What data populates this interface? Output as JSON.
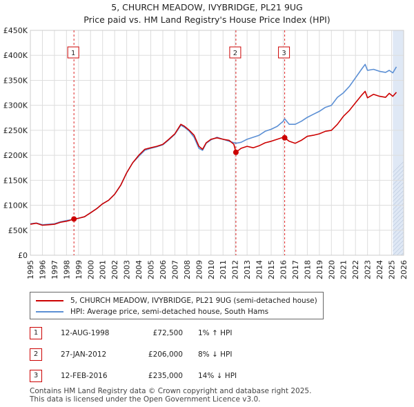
{
  "title_line1": "5, CHURCH MEADOW, IVYBRIDGE, PL21 9UG",
  "title_line2": "Price paid vs. HM Land Registry's House Price Index (HPI)",
  "colors": {
    "property": "#cc0000",
    "hpi": "#5b8fd4",
    "shade": "#dfe8f5",
    "grid": "#dddddd",
    "vline": "#dd2222"
  },
  "chart_data": {
    "type": "line",
    "xlim": [
      1995,
      2026
    ],
    "ylim": [
      0,
      450000
    ],
    "x_ticks": [
      1995,
      1996,
      1997,
      1998,
      1999,
      2000,
      2001,
      2002,
      2003,
      2004,
      2005,
      2006,
      2007,
      2008,
      2009,
      2010,
      2011,
      2012,
      2013,
      2014,
      2015,
      2016,
      2017,
      2018,
      2019,
      2020,
      2021,
      2022,
      2023,
      2024,
      2025,
      2026
    ],
    "y_ticks": [
      {
        "value": 0,
        "label": "£0"
      },
      {
        "value": 50000,
        "label": "£50K"
      },
      {
        "value": 100000,
        "label": "£100K"
      },
      {
        "value": 150000,
        "label": "£150K"
      },
      {
        "value": 200000,
        "label": "£200K"
      },
      {
        "value": 250000,
        "label": "£250K"
      },
      {
        "value": 300000,
        "label": "£300K"
      },
      {
        "value": 350000,
        "label": "£350K"
      },
      {
        "value": 400000,
        "label": "£400K"
      },
      {
        "value": 450000,
        "label": "£450K"
      }
    ],
    "forecast_start": 2025.1,
    "series": [
      {
        "name": "5, CHURCH MEADOW, IVYBRIDGE, PL21 9UG (semi-detached house)",
        "points": [
          [
            1995.0,
            62000
          ],
          [
            1995.5,
            64000
          ],
          [
            1996.0,
            60000
          ],
          [
            1996.5,
            61000
          ],
          [
            1997.0,
            62000
          ],
          [
            1997.5,
            66000
          ],
          [
            1998.0,
            68000
          ],
          [
            1998.3,
            70000
          ],
          [
            1998.62,
            72500
          ],
          [
            1999.0,
            74000
          ],
          [
            1999.5,
            77000
          ],
          [
            2000.0,
            85000
          ],
          [
            2000.5,
            93000
          ],
          [
            2001.0,
            103000
          ],
          [
            2001.5,
            110000
          ],
          [
            2002.0,
            122000
          ],
          [
            2002.5,
            140000
          ],
          [
            2003.0,
            165000
          ],
          [
            2003.5,
            185000
          ],
          [
            2004.0,
            200000
          ],
          [
            2004.5,
            212000
          ],
          [
            2005.0,
            215000
          ],
          [
            2005.5,
            218000
          ],
          [
            2006.0,
            222000
          ],
          [
            2006.5,
            232000
          ],
          [
            2007.0,
            243000
          ],
          [
            2007.5,
            262000
          ],
          [
            2007.8,
            258000
          ],
          [
            2008.2,
            250000
          ],
          [
            2008.6,
            240000
          ],
          [
            2009.0,
            218000
          ],
          [
            2009.3,
            212000
          ],
          [
            2009.6,
            225000
          ],
          [
            2010.0,
            232000
          ],
          [
            2010.5,
            235000
          ],
          [
            2011.0,
            232000
          ],
          [
            2011.5,
            230000
          ],
          [
            2011.9,
            222000
          ],
          [
            2012.07,
            206000
          ],
          [
            2012.5,
            214000
          ],
          [
            2013.0,
            218000
          ],
          [
            2013.5,
            215000
          ],
          [
            2014.0,
            219000
          ],
          [
            2014.5,
            225000
          ],
          [
            2015.0,
            228000
          ],
          [
            2015.5,
            232000
          ],
          [
            2016.0,
            236000
          ],
          [
            2016.12,
            235000
          ],
          [
            2016.5,
            228000
          ],
          [
            2017.0,
            224000
          ],
          [
            2017.5,
            230000
          ],
          [
            2018.0,
            238000
          ],
          [
            2018.5,
            240000
          ],
          [
            2019.0,
            243000
          ],
          [
            2019.5,
            248000
          ],
          [
            2020.0,
            250000
          ],
          [
            2020.5,
            262000
          ],
          [
            2021.0,
            278000
          ],
          [
            2021.5,
            290000
          ],
          [
            2022.0,
            305000
          ],
          [
            2022.5,
            320000
          ],
          [
            2022.8,
            328000
          ],
          [
            2023.0,
            315000
          ],
          [
            2023.5,
            322000
          ],
          [
            2024.0,
            318000
          ],
          [
            2024.5,
            316000
          ],
          [
            2024.8,
            324000
          ],
          [
            2025.1,
            318000
          ],
          [
            2025.4,
            326000
          ]
        ]
      },
      {
        "name": "HPI: Average price, semi-detached house, South Hams",
        "points": [
          [
            1995.0,
            63000
          ],
          [
            1995.5,
            64500
          ],
          [
            1996.0,
            61000
          ],
          [
            1996.5,
            62000
          ],
          [
            1997.0,
            63000
          ],
          [
            1997.5,
            67000
          ],
          [
            1998.0,
            69500
          ],
          [
            1998.62,
            71800
          ],
          [
            1999.0,
            74000
          ],
          [
            1999.5,
            77000
          ],
          [
            2000.0,
            85000
          ],
          [
            2000.5,
            93000
          ],
          [
            2001.0,
            103000
          ],
          [
            2001.5,
            110000
          ],
          [
            2002.0,
            122000
          ],
          [
            2002.5,
            140000
          ],
          [
            2003.0,
            165000
          ],
          [
            2003.5,
            185000
          ],
          [
            2004.0,
            198000
          ],
          [
            2004.5,
            210000
          ],
          [
            2005.0,
            214000
          ],
          [
            2005.5,
            217000
          ],
          [
            2006.0,
            221000
          ],
          [
            2006.5,
            231000
          ],
          [
            2007.0,
            242000
          ],
          [
            2007.5,
            260000
          ],
          [
            2007.8,
            256000
          ],
          [
            2008.2,
            248000
          ],
          [
            2008.6,
            236000
          ],
          [
            2009.0,
            214000
          ],
          [
            2009.3,
            210000
          ],
          [
            2009.6,
            224000
          ],
          [
            2010.0,
            231000
          ],
          [
            2010.5,
            236000
          ],
          [
            2011.0,
            232000
          ],
          [
            2011.5,
            228000
          ],
          [
            2012.07,
            224000
          ],
          [
            2012.5,
            226000
          ],
          [
            2013.0,
            232000
          ],
          [
            2013.5,
            236000
          ],
          [
            2014.0,
            240000
          ],
          [
            2014.5,
            248000
          ],
          [
            2015.0,
            252000
          ],
          [
            2015.5,
            258000
          ],
          [
            2016.0,
            268000
          ],
          [
            2016.12,
            273000
          ],
          [
            2016.5,
            262000
          ],
          [
            2017.0,
            262000
          ],
          [
            2017.5,
            268000
          ],
          [
            2018.0,
            276000
          ],
          [
            2018.5,
            282000
          ],
          [
            2019.0,
            288000
          ],
          [
            2019.5,
            296000
          ],
          [
            2020.0,
            300000
          ],
          [
            2020.5,
            316000
          ],
          [
            2021.0,
            325000
          ],
          [
            2021.5,
            338000
          ],
          [
            2022.0,
            355000
          ],
          [
            2022.5,
            372000
          ],
          [
            2022.8,
            382000
          ],
          [
            2023.0,
            370000
          ],
          [
            2023.5,
            372000
          ],
          [
            2024.0,
            368000
          ],
          [
            2024.5,
            366000
          ],
          [
            2024.8,
            370000
          ],
          [
            2025.1,
            365000
          ],
          [
            2025.4,
            377000
          ]
        ]
      }
    ],
    "sales": [
      {
        "label": "1",
        "x": 1998.62,
        "value": 72500
      },
      {
        "label": "2",
        "x": 2012.07,
        "value": 206000
      },
      {
        "label": "3",
        "x": 2016.12,
        "value": 235000
      }
    ]
  },
  "legend": {
    "property_label": "5, CHURCH MEADOW, IVYBRIDGE, PL21 9UG (semi-detached house)",
    "hpi_label": "HPI: Average price, semi-detached house, South Hams"
  },
  "transactions": [
    {
      "num": "1",
      "date": "12-AUG-1998",
      "price": "£72,500",
      "hpi": "1% ↑ HPI"
    },
    {
      "num": "2",
      "date": "27-JAN-2012",
      "price": "£206,000",
      "hpi": "8% ↓ HPI"
    },
    {
      "num": "3",
      "date": "12-FEB-2016",
      "price": "£235,000",
      "hpi": "14% ↓ HPI"
    }
  ],
  "footer": {
    "line1": "Contains HM Land Registry data © Crown copyright and database right 2025.",
    "line2": "This data is licensed under the Open Government Licence v3.0."
  }
}
